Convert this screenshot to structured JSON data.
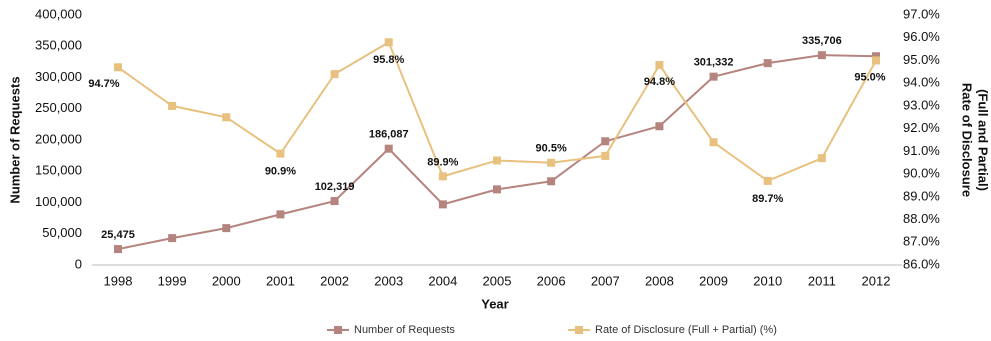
{
  "chart_data": {
    "type": "line",
    "x_label": "Year",
    "y_label": "Number of Requests",
    "y2_label": [
      "Rate of Disclosure",
      "(Full and Partial)"
    ],
    "categories": [
      "1998",
      "1999",
      "2000",
      "2001",
      "2002",
      "2003",
      "2004",
      "2005",
      "2006",
      "2007",
      "2008",
      "2009",
      "2010",
      "2011",
      "2012"
    ],
    "series": [
      {
        "name": "Number of Requests",
        "color": "#b5847e",
        "axis": "y",
        "values": [
          25475,
          43000,
          59000,
          81000,
          102319,
          186087,
          97000,
          121000,
          134000,
          198000,
          222000,
          301332,
          323000,
          335706,
          334000
        ],
        "value_labels": [
          "25,475",
          null,
          null,
          null,
          "102,319",
          "186,087",
          null,
          null,
          null,
          null,
          null,
          "301,332",
          null,
          "335,706",
          null
        ]
      },
      {
        "name": "Rate of Disclosure (Full + Partial) (%)",
        "color": "#e8c17f",
        "axis": "y2",
        "values": [
          94.7,
          93.0,
          92.5,
          90.9,
          94.4,
          95.8,
          89.9,
          90.6,
          90.5,
          90.8,
          94.8,
          91.4,
          89.7,
          90.7,
          95.0
        ],
        "value_labels": [
          "94.7%",
          null,
          null,
          "90.9%",
          null,
          "95.8%",
          "89.9%",
          null,
          "90.5%",
          null,
          "94.8%",
          null,
          "89.7%",
          null,
          "95.0%"
        ]
      }
    ],
    "ylim": [
      0,
      400000
    ],
    "yticks": [
      0,
      {
        "value": 50000,
        "label": "50,000"
      },
      {
        "value": 100000,
        "label": "100,000"
      },
      {
        "value": 150000,
        "label": "150,000"
      },
      {
        "value": 200000,
        "label": "200,000"
      },
      {
        "value": 250000,
        "label": "250,000"
      },
      {
        "value": 300000,
        "label": "300,000"
      },
      {
        "value": 350000,
        "label": "350,000"
      },
      {
        "value": 400000,
        "label": "400,000"
      }
    ],
    "y2lim": [
      86,
      97
    ],
    "y2ticks": [
      {
        "value": 86,
        "label": "86.0%"
      },
      {
        "value": 87,
        "label": "87.0%"
      },
      {
        "value": 88,
        "label": "88.0%"
      },
      {
        "value": 89,
        "label": "89.0%"
      },
      {
        "value": 90,
        "label": "90.0%"
      },
      {
        "value": 91,
        "label": "91.0%"
      },
      {
        "value": 92,
        "label": "92.0%"
      },
      {
        "value": 93,
        "label": "93.0%"
      },
      {
        "value": 94,
        "label": "94.0%"
      },
      {
        "value": 95,
        "label": "95.0%"
      },
      {
        "value": 96,
        "label": "96.0%"
      },
      {
        "value": 97,
        "label": "97.0%"
      }
    ],
    "legend": "bottom"
  }
}
